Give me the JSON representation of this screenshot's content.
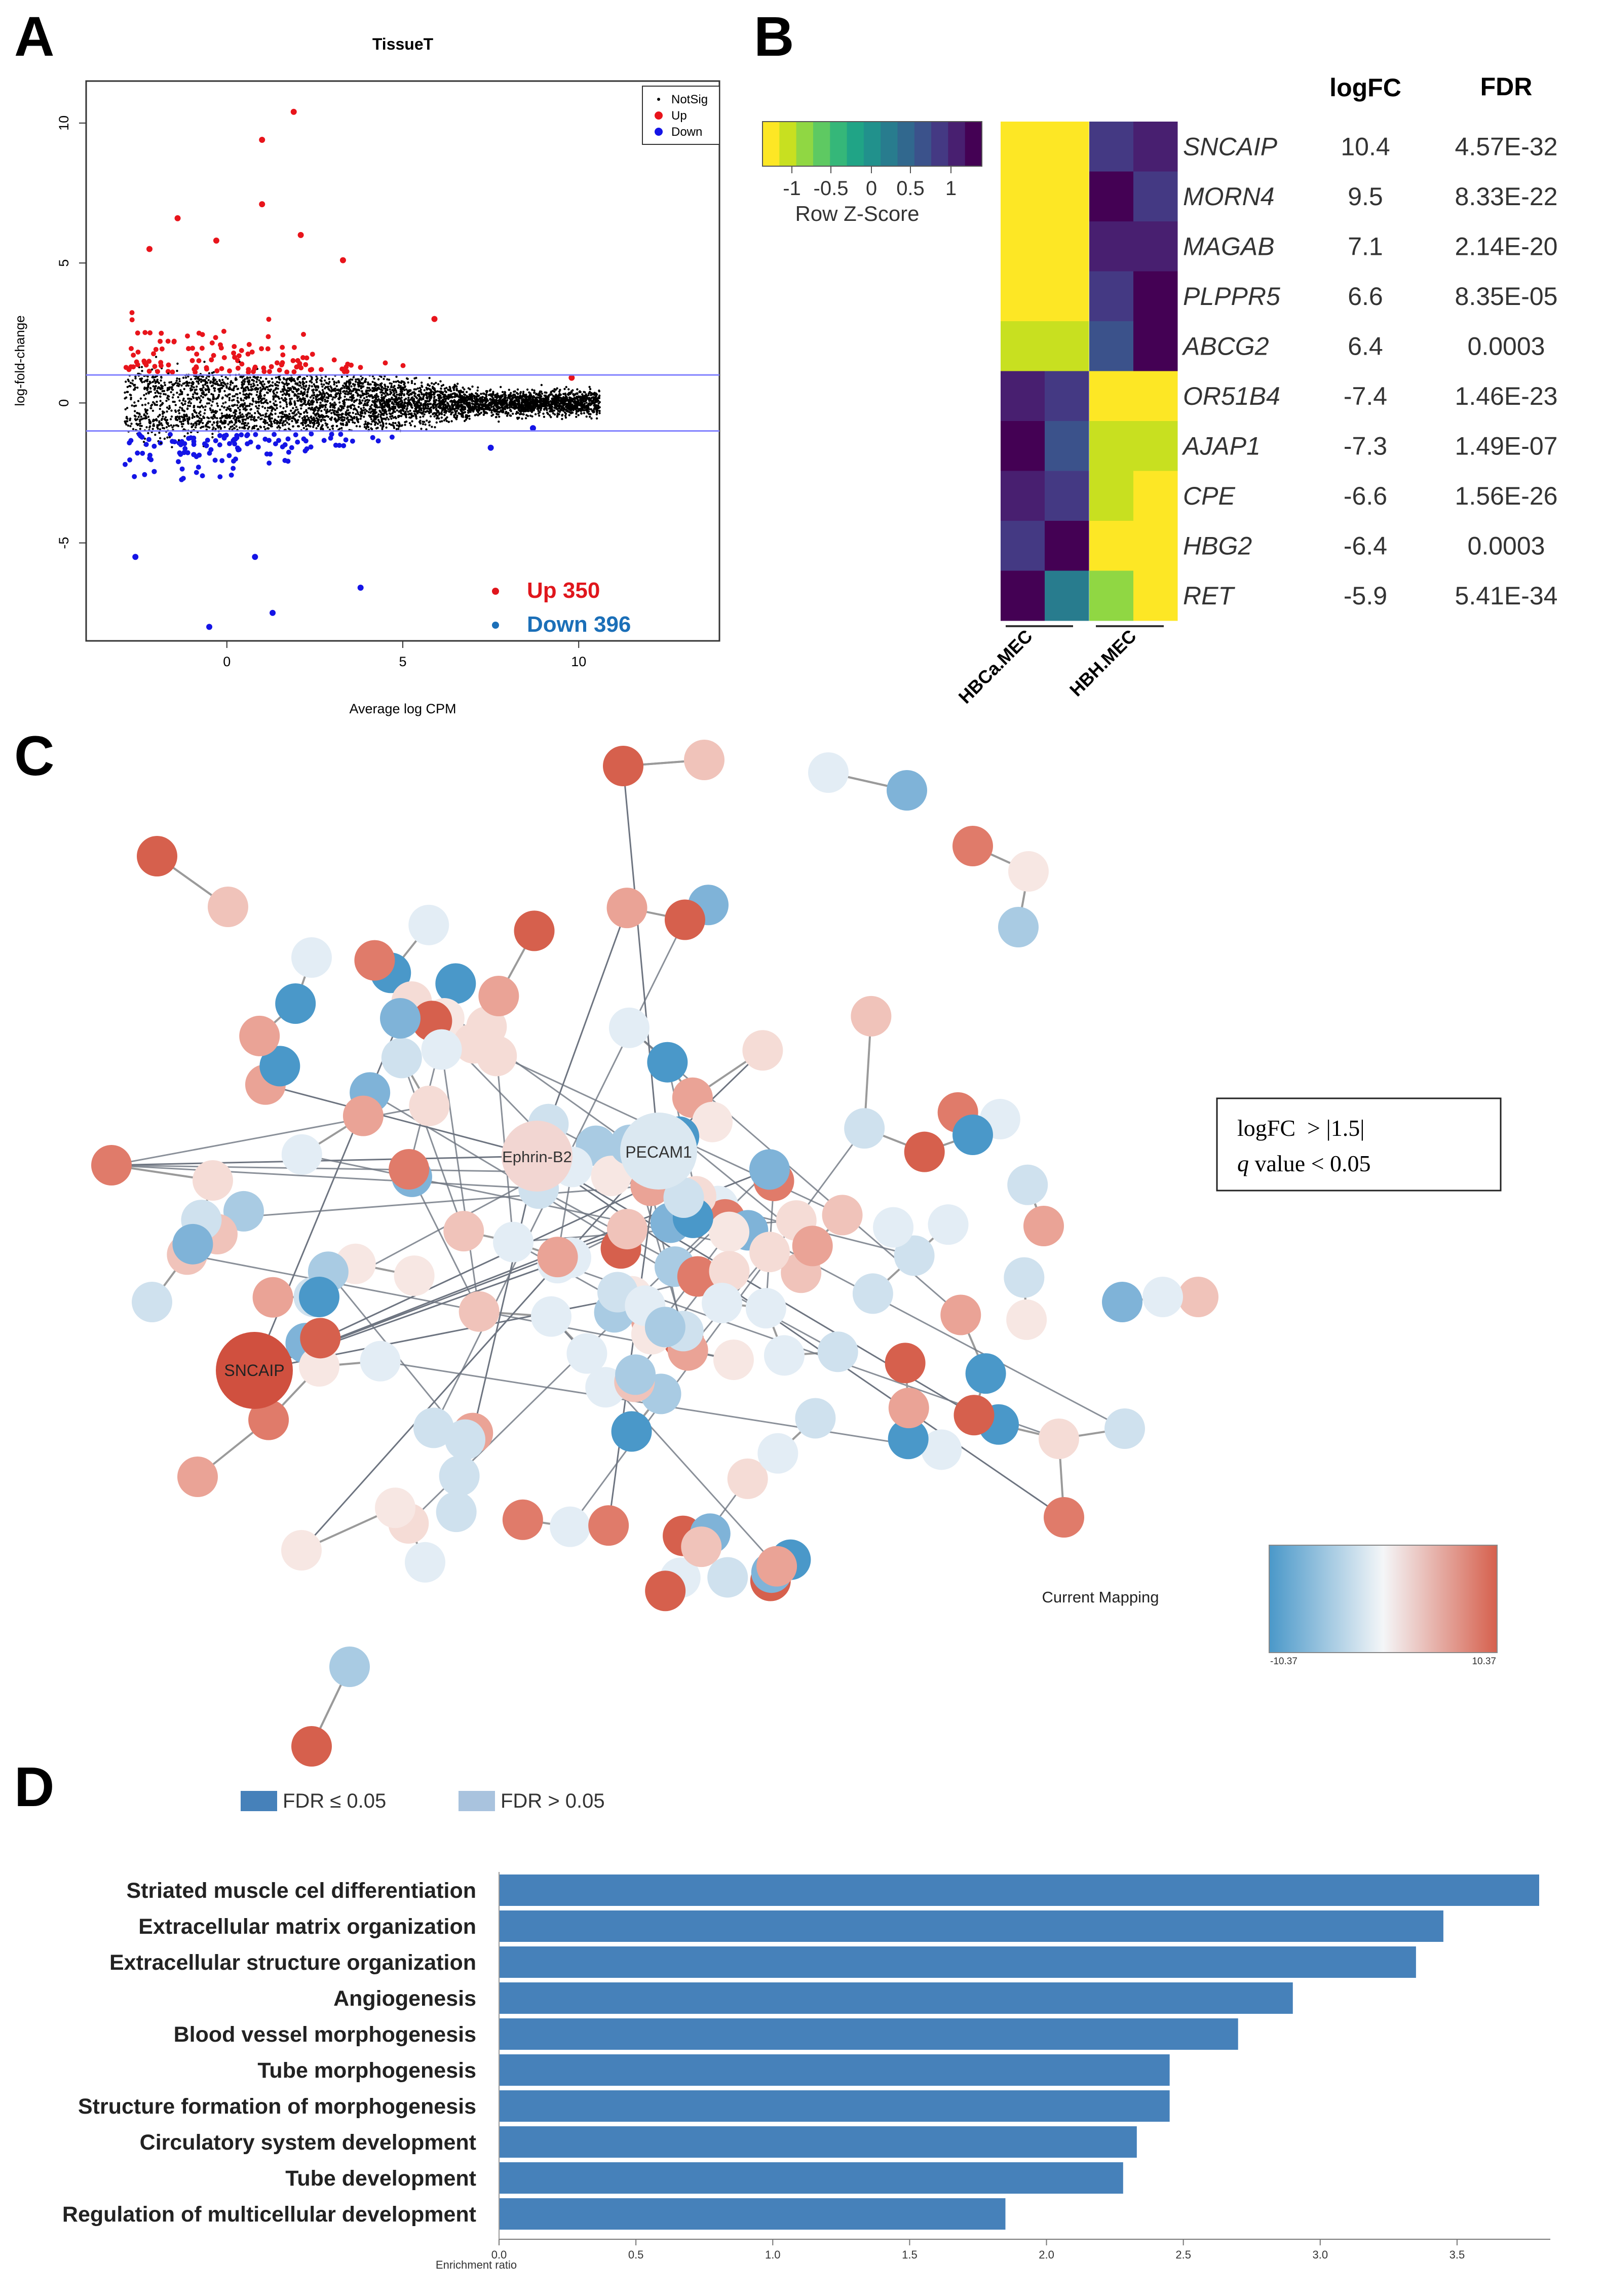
{
  "panels": [
    "A",
    "B",
    "C",
    "D"
  ],
  "chart_data": [
    {
      "panel": "A",
      "type": "scatter",
      "title": "TissueT",
      "xlabel": "Average log CPM",
      "ylabel": "log-fold-change",
      "xlim": [
        -4,
        14
      ],
      "ylim": [
        -8.5,
        11.5
      ],
      "x_ticks": [
        0,
        5,
        10
      ],
      "y_ticks": [
        -5,
        0,
        5,
        10
      ],
      "threshold_lines": [
        1,
        -1
      ],
      "legend": [
        "NotSig",
        "Up",
        "Down"
      ],
      "legend_position": "top-right",
      "colors": {
        "notsig": "#000000",
        "up": "#e8141b",
        "down": "#1414e6",
        "threshold": "#8080ff",
        "up_text": "#e0161c",
        "down_text": "#1b6fb8"
      },
      "annotations": [
        {
          "label": "Up 350",
          "count": 350
        },
        {
          "label": "Down 396",
          "count": 396
        }
      ],
      "highlight_points": [
        {
          "group": "Up",
          "x": 1.9,
          "y": 10.4
        },
        {
          "group": "Up",
          "x": 1.0,
          "y": 9.4
        },
        {
          "group": "Up",
          "x": 1.0,
          "y": 7.1
        },
        {
          "group": "Up",
          "x": -0.3,
          "y": 5.8
        },
        {
          "group": "Up",
          "x": 2.1,
          "y": 6.0
        },
        {
          "group": "Up",
          "x": 3.3,
          "y": 5.1
        },
        {
          "group": "Up",
          "x": 5.9,
          "y": 3.0
        },
        {
          "group": "Up",
          "x": 9.8,
          "y": 0.9
        },
        {
          "group": "Up",
          "x": -1.4,
          "y": 6.6
        },
        {
          "group": "Up",
          "x": -2.2,
          "y": 5.5
        },
        {
          "group": "Down",
          "x": -0.5,
          "y": -8.0
        },
        {
          "group": "Down",
          "x": 1.3,
          "y": -7.5
        },
        {
          "group": "Down",
          "x": 3.8,
          "y": -6.6
        },
        {
          "group": "Down",
          "x": 0.8,
          "y": -5.5
        },
        {
          "group": "Down",
          "x": -2.6,
          "y": -5.5
        },
        {
          "group": "Down",
          "x": 7.5,
          "y": -1.6
        },
        {
          "group": "Down",
          "x": 8.7,
          "y": -0.9
        }
      ]
    },
    {
      "panel": "B",
      "type": "heatmap",
      "colorbar_label": "Row Z-Score",
      "colorbar_ticks": [
        "-1",
        "-0.5",
        "0",
        "0.5",
        "1"
      ],
      "colorbar_colors": [
        "#fde725",
        "#c8e020",
        "#90d743",
        "#5ec962",
        "#35b779",
        "#20a486",
        "#21918c",
        "#287c8e",
        "#31688e",
        "#3b528b",
        "#443983",
        "#481f70",
        "#440154"
      ],
      "column_groups": [
        "HBCa.MEC",
        "HBH.MEC"
      ],
      "column_headers": [
        "logFC",
        "FDR"
      ],
      "rows": [
        {
          "gene": "SNCAIP",
          "logFC": "10.4",
          "FDR": "4.57E-32",
          "z": [
            -0.95,
            -0.95,
            0.7,
            0.9
          ]
        },
        {
          "gene": "MORN4",
          "logFC": "9.5",
          "FDR": "8.33E-22",
          "z": [
            -0.95,
            -0.95,
            1.0,
            0.7
          ]
        },
        {
          "gene": "MAGAB",
          "logFC": "7.1",
          "FDR": "2.14E-20",
          "z": [
            -0.95,
            -0.95,
            0.9,
            0.85
          ]
        },
        {
          "gene": "PLPPR5",
          "logFC": "6.6",
          "FDR": "8.35E-05",
          "z": [
            -0.95,
            -0.95,
            0.6,
            1.0
          ]
        },
        {
          "gene": "ABCG2",
          "logFC": "6.4",
          "FDR": "0.0003",
          "z": [
            -0.8,
            -0.8,
            0.5,
            1.0
          ]
        },
        {
          "gene": "OR51B4",
          "logFC": "-7.4",
          "FDR": "1.46E-23",
          "z": [
            0.85,
            0.7,
            -0.95,
            -0.95
          ]
        },
        {
          "gene": "AJAP1",
          "logFC": "-7.3",
          "FDR": "1.49E-07",
          "z": [
            1.0,
            0.5,
            -0.85,
            -0.85
          ]
        },
        {
          "gene": "CPE",
          "logFC": "-6.6",
          "FDR": "1.56E-26",
          "z": [
            0.9,
            0.6,
            -0.8,
            -0.95
          ]
        },
        {
          "gene": "HBG2",
          "logFC": "-6.4",
          "FDR": "0.0003",
          "z": [
            0.6,
            1.0,
            -0.95,
            -0.95
          ]
        },
        {
          "gene": "RET",
          "logFC": "-5.9",
          "FDR": "5.41E-34",
          "z": [
            1.0,
            0.2,
            -0.75,
            -0.95
          ]
        }
      ]
    },
    {
      "panel": "C",
      "type": "network",
      "labeled_nodes": [
        "SNCAIP",
        "Ephrin-B2",
        "PECAM1"
      ],
      "legend_box": {
        "line1": "logFC  > |1.5|",
        "line2_italic": "q",
        "line2_rest": " value < 0.05"
      },
      "colorbar_label": "Current Mapping",
      "colorbar_min": "-10.37",
      "colorbar_max": "10.37",
      "colors": {
        "low": "#4a98c9",
        "mid": "#f4f6f8",
        "high": "#d6604d",
        "edge": "#9a9a9a"
      }
    },
    {
      "panel": "D",
      "type": "bar",
      "orientation": "horizontal",
      "legend": [
        {
          "label": "FDR ≤ 0.05",
          "color": "#4681ba"
        },
        {
          "label": "FDR > 0.05",
          "color": "#a9c3de"
        }
      ],
      "categories": [
        "Striated muscle cel differentiation",
        "Extracellular matrix organization",
        "Extracellular structure organization",
        "Angiogenesis",
        "Blood vessel morphogenesis",
        "Tube morphogenesis",
        "Structure formation of morphogenesis",
        "Circulatory system development",
        "Tube development",
        "Regulation of multicellular development"
      ],
      "values": [
        3.8,
        3.45,
        3.35,
        2.9,
        2.7,
        2.45,
        2.45,
        2.33,
        2.28,
        1.85
      ],
      "xlabel": "Enrichment ratio",
      "xlim": [
        0,
        3.8
      ],
      "x_ticks": [
        "0.0",
        "0.5",
        "1.0",
        "1.5",
        "2.0",
        "2.5",
        "3.0",
        "3.5"
      ],
      "bar_color": "#4681ba"
    }
  ]
}
